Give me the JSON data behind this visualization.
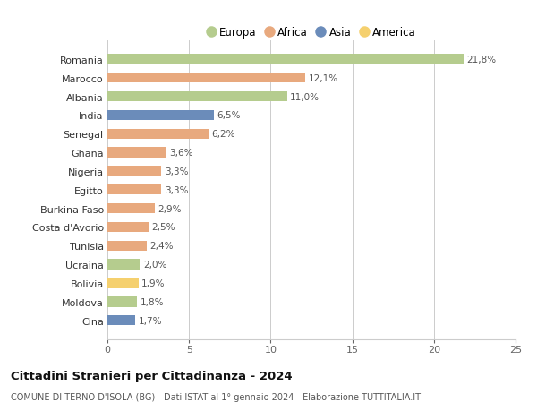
{
  "countries": [
    "Romania",
    "Marocco",
    "Albania",
    "India",
    "Senegal",
    "Ghana",
    "Nigeria",
    "Egitto",
    "Burkina Faso",
    "Costa d'Avorio",
    "Tunisia",
    "Ucraina",
    "Bolivia",
    "Moldova",
    "Cina"
  ],
  "values": [
    21.8,
    12.1,
    11.0,
    6.5,
    6.2,
    3.6,
    3.3,
    3.3,
    2.9,
    2.5,
    2.4,
    2.0,
    1.9,
    1.8,
    1.7
  ],
  "labels": [
    "21,8%",
    "12,1%",
    "11,0%",
    "6,5%",
    "6,2%",
    "3,6%",
    "3,3%",
    "3,3%",
    "2,9%",
    "2,5%",
    "2,4%",
    "2,0%",
    "1,9%",
    "1,8%",
    "1,7%"
  ],
  "continents": [
    "Europa",
    "Africa",
    "Europa",
    "Asia",
    "Africa",
    "Africa",
    "Africa",
    "Africa",
    "Africa",
    "Africa",
    "Africa",
    "Europa",
    "America",
    "Europa",
    "Asia"
  ],
  "colors": {
    "Europa": "#b5cc8e",
    "Africa": "#e8a97e",
    "Asia": "#6b8cba",
    "America": "#f5d06e"
  },
  "legend_order": [
    "Europa",
    "Africa",
    "Asia",
    "America"
  ],
  "xlim": [
    0,
    25
  ],
  "xticks": [
    0,
    5,
    10,
    15,
    20,
    25
  ],
  "title": "Cittadini Stranieri per Cittadinanza - 2024",
  "subtitle": "COMUNE DI TERNO D'ISOLA (BG) - Dati ISTAT al 1° gennaio 2024 - Elaborazione TUTTITALIA.IT",
  "bg_color": "#ffffff",
  "grid_color": "#cccccc",
  "bar_height": 0.55,
  "label_fontsize": 7.5,
  "tick_fontsize": 8.0,
  "legend_fontsize": 8.5,
  "title_fontsize": 9.5,
  "subtitle_fontsize": 7.0
}
